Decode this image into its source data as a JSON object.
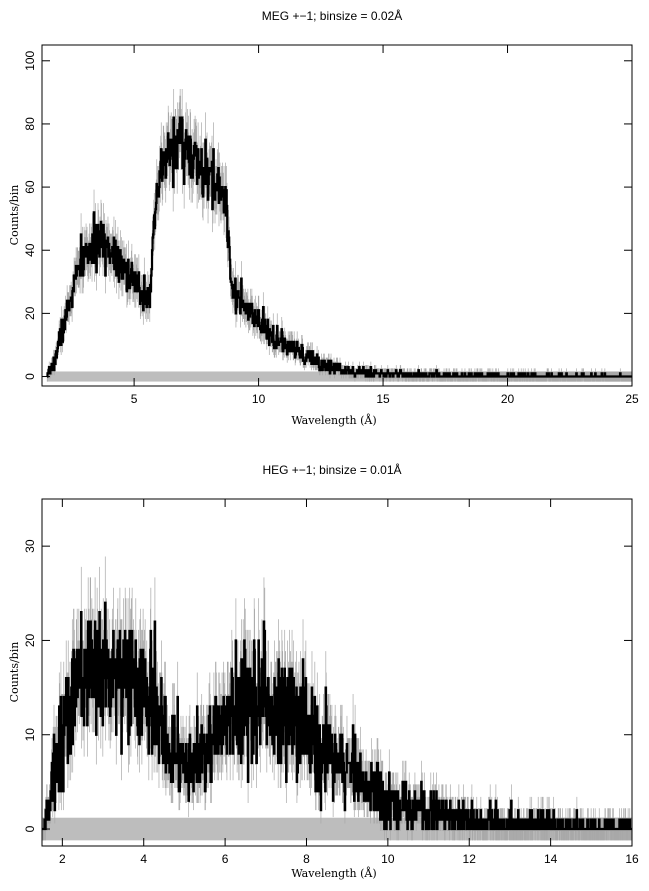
{
  "chart_data": [
    {
      "type": "line",
      "style": "histogram",
      "title": "MEG +−1; binsize = 0.02Å",
      "xlabel": "Wavelength (Å)",
      "ylabel": "Counts/bin",
      "xlim": [
        1.3,
        25
      ],
      "ylim": [
        -3,
        105
      ],
      "xticks": [
        5,
        10,
        15,
        20,
        25
      ],
      "yticks": [
        0,
        20,
        40,
        60,
        80,
        100
      ],
      "grid": false,
      "series": [
        {
          "values_description": "estimated envelope of counts per bin",
          "x": [
            1.5,
            1.8,
            2.0,
            2.3,
            2.6,
            2.9,
            3.2,
            3.5,
            3.8,
            4.1,
            4.4,
            4.7,
            5.0,
            5.3,
            5.6,
            5.8,
            6.0,
            6.3,
            6.6,
            6.9,
            7.2,
            7.5,
            7.8,
            8.1,
            8.4,
            8.7,
            8.9,
            9.2,
            9.6,
            10.0,
            10.5,
            11.0,
            11.5,
            12.0,
            12.5,
            13.0,
            13.5,
            14.0,
            15.0,
            16.0,
            17.0,
            18.0,
            20.0,
            22.0,
            25.0
          ],
          "y": [
            0,
            5,
            12,
            20,
            30,
            37,
            40,
            42,
            42,
            40,
            38,
            33,
            29,
            27,
            26,
            45,
            62,
            70,
            73,
            75,
            70,
            67,
            64,
            62,
            60,
            55,
            30,
            24,
            20,
            17,
            13,
            10,
            8,
            6,
            4,
            3,
            2,
            1.5,
            1,
            0.7,
            0.5,
            0.3,
            0.2,
            0.1,
            0
          ]
        }
      ]
    },
    {
      "type": "line",
      "style": "histogram",
      "title": "HEG +−1; binsize = 0.01Å",
      "xlabel": "Wavelength (Å)",
      "ylabel": "Counts/bin",
      "xlim": [
        1.5,
        16
      ],
      "ylim": [
        -1.8,
        35
      ],
      "xticks": [
        2,
        4,
        6,
        8,
        10,
        12,
        14,
        16
      ],
      "yticks": [
        0,
        10,
        20,
        30
      ],
      "grid": false,
      "series": [
        {
          "values_description": "estimated envelope of counts per bin",
          "x": [
            1.5,
            1.7,
            1.9,
            2.2,
            2.5,
            2.8,
            3.1,
            3.4,
            3.7,
            4.0,
            4.3,
            4.6,
            4.9,
            5.2,
            5.5,
            5.8,
            6.1,
            6.4,
            6.7,
            7.0,
            7.3,
            7.6,
            7.9,
            8.2,
            8.5,
            8.8,
            9.1,
            9.4,
            9.7,
            10.0,
            10.5,
            11.0,
            11.5,
            12.0,
            12.5,
            13.0,
            13.5,
            14.0,
            15.0,
            16.0
          ],
          "y": [
            0,
            3,
            9,
            13,
            16,
            17,
            17.5,
            17,
            16,
            14,
            12,
            9,
            7,
            7,
            8,
            10,
            12,
            13,
            14,
            14,
            13,
            12,
            11,
            10,
            8,
            7,
            6,
            5,
            4,
            3,
            2.5,
            2,
            1.5,
            1,
            0.8,
            0.5,
            0.4,
            0.3,
            0.2,
            0
          ]
        }
      ]
    }
  ]
}
